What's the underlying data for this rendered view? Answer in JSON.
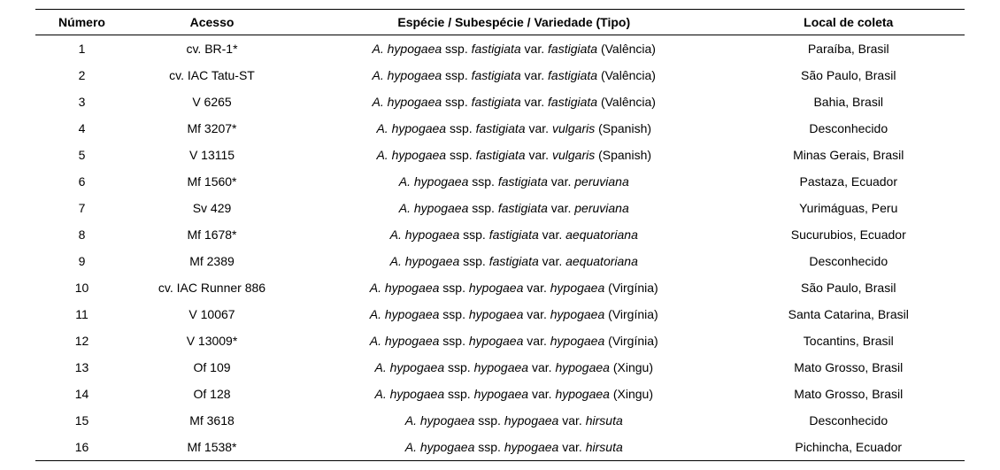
{
  "table": {
    "columns": {
      "numero": "Número",
      "acesso": "Acesso",
      "especie": "Espécie / Subespécie / Variedade (Tipo)",
      "local": "Local de coleta"
    },
    "rows": [
      {
        "numero": "1",
        "acesso": "cv. BR-1*",
        "especie_parts": {
          "sp": "A. hypogaea",
          "t1": " ssp. ",
          "ssp": "fastigiata",
          "t2": " var. ",
          "var": "fastigiata",
          "type": " (Valência)"
        },
        "local": "Paraíba, Brasil"
      },
      {
        "numero": "2",
        "acesso": "cv. IAC Tatu-ST",
        "especie_parts": {
          "sp": "A. hypogaea",
          "t1": " ssp. ",
          "ssp": "fastigiata",
          "t2": " var. ",
          "var": "fastigiata",
          "type": " (Valência)"
        },
        "local": "São Paulo, Brasil"
      },
      {
        "numero": "3",
        "acesso": "V 6265",
        "especie_parts": {
          "sp": "A. hypogaea",
          "t1": " ssp. ",
          "ssp": "fastigiata",
          "t2": " var. ",
          "var": "fastigiata",
          "type": " (Valência)"
        },
        "local": "Bahia, Brasil"
      },
      {
        "numero": "4",
        "acesso": "Mf 3207*",
        "especie_parts": {
          "sp": "A. hypogaea",
          "t1": " ssp. ",
          "ssp": "fastigiata",
          "t2": " var. ",
          "var": "vulgaris",
          "type": " (Spanish)"
        },
        "local": "Desconhecido"
      },
      {
        "numero": "5",
        "acesso": "V 13115",
        "especie_parts": {
          "sp": "A. hypogaea",
          "t1": " ssp. ",
          "ssp": "fastigiata",
          "t2": " var. ",
          "var": "vulgaris",
          "type": " (Spanish)"
        },
        "local": "Minas Gerais, Brasil"
      },
      {
        "numero": "6",
        "acesso": "Mf 1560*",
        "especie_parts": {
          "sp": "A. hypogaea",
          "t1": " ssp. ",
          "ssp": "fastigiata",
          "t2": " var. ",
          "var": "peruviana",
          "type": ""
        },
        "local": "Pastaza, Ecuador"
      },
      {
        "numero": "7",
        "acesso": "Sv 429",
        "especie_parts": {
          "sp": "A. hypogaea",
          "t1": " ssp. ",
          "ssp": "fastigiata",
          "t2": " var. ",
          "var": "peruviana",
          "type": ""
        },
        "local": "Yurimáguas, Peru"
      },
      {
        "numero": "8",
        "acesso": "Mf 1678*",
        "especie_parts": {
          "sp": "A. hypogaea",
          "t1": " ssp. ",
          "ssp": "fastigiata",
          "t2": " var. ",
          "var": "aequatoriana",
          "type": ""
        },
        "local": "Sucurubios, Ecuador"
      },
      {
        "numero": "9",
        "acesso": "Mf 2389",
        "especie_parts": {
          "sp": "A. hypogaea",
          "t1": " ssp. ",
          "ssp": "fastigiata",
          "t2": " var. ",
          "var": "aequatoriana",
          "type": ""
        },
        "local": "Desconhecido"
      },
      {
        "numero": "10",
        "acesso": "cv. IAC Runner 886",
        "especie_parts": {
          "sp": "A. hypogaea",
          "t1": " ssp. ",
          "ssp": "hypogaea",
          "t2": " var. ",
          "var": "hypogaea",
          "type": " (Virgínia)"
        },
        "local": "São Paulo, Brasil"
      },
      {
        "numero": "11",
        "acesso": "V 10067",
        "especie_parts": {
          "sp": "A. hypogaea",
          "t1": " ssp. ",
          "ssp": "hypogaea",
          "t2": " var. ",
          "var": "hypogaea",
          "type": " (Virgínia)"
        },
        "local": "Santa Catarina, Brasil"
      },
      {
        "numero": "12",
        "acesso": "V 13009*",
        "especie_parts": {
          "sp": "A. hypogaea",
          "t1": " ssp. ",
          "ssp": "hypogaea",
          "t2": " var. ",
          "var": "hypogaea",
          "type": " (Virgínia)"
        },
        "local": "Tocantins, Brasil"
      },
      {
        "numero": "13",
        "acesso": "Of 109",
        "especie_parts": {
          "sp": "A. hypogaea",
          "t1": " ssp. ",
          "ssp": "hypogaea",
          "t2": " var. ",
          "var": "hypogaea",
          "type": " (Xingu)"
        },
        "local": "Mato Grosso, Brasil"
      },
      {
        "numero": "14",
        "acesso": "Of 128",
        "especie_parts": {
          "sp": "A. hypogaea",
          "t1": " ssp. ",
          "ssp": "hypogaea",
          "t2": " var. ",
          "var": "hypogaea",
          "type": " (Xingu)"
        },
        "local": "Mato Grosso, Brasil"
      },
      {
        "numero": "15",
        "acesso": "Mf 3618",
        "especie_parts": {
          "sp": "A. hypogaea",
          "t1": " ssp. ",
          "ssp": "hypogaea",
          "t2": " var. ",
          "var": "hirsuta",
          "type": ""
        },
        "local": "Desconhecido"
      },
      {
        "numero": "16",
        "acesso": "Mf 1538*",
        "especie_parts": {
          "sp": "A. hypogaea",
          "t1": " ssp. ",
          "ssp": "hypogaea",
          "t2": " var. ",
          "var": "hirsuta",
          "type": ""
        },
        "local": "Pichincha, Ecuador"
      }
    ],
    "styling": {
      "border_color": "#000000",
      "background_color": "#ffffff",
      "text_color": "#000000",
      "header_fontsize": 14,
      "body_fontsize": 14,
      "font_family": "Arial"
    }
  }
}
